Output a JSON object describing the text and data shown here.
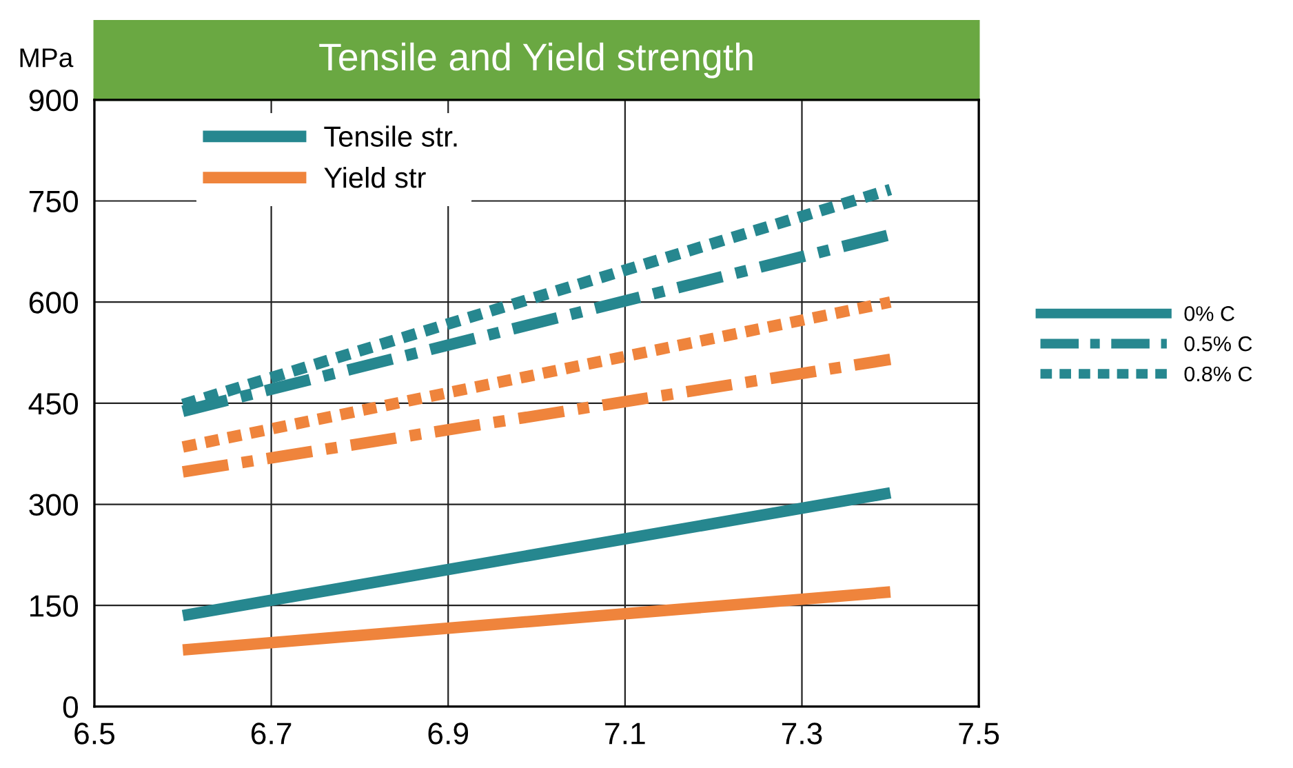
{
  "chart_data": {
    "type": "line",
    "title": "Tensile and Yield strength",
    "ylabel": "MPa",
    "x": [
      6.6,
      7.4
    ],
    "series": [
      {
        "name": "Tensile str.",
        "color": "#26878f",
        "values": [
          135,
          317
        ],
        "line_style": "solid"
      },
      {
        "name": "Yield str",
        "color": "#ef843c",
        "values": [
          84,
          170
        ],
        "line_style": "solid"
      },
      {
        "color": "#26878f",
        "values": [
          438,
          700
        ],
        "line_style": "dashdot"
      },
      {
        "color": "#ef843c",
        "values": [
          348,
          515
        ],
        "line_style": "dashdot"
      },
      {
        "color": "#26878f",
        "values": [
          448,
          767
        ],
        "line_style": "dashed"
      },
      {
        "color": "#ef843c",
        "values": [
          385,
          600
        ],
        "line_style": "dashed"
      }
    ],
    "annotations": [
      "0% C",
      "0.5% C",
      "0.8% C"
    ],
    "xlim": [
      6.5,
      7.5
    ],
    "xticks": [
      6.5,
      6.7,
      6.9,
      7.1,
      7.3,
      7.5
    ],
    "ylim": [
      0,
      900
    ],
    "yticks": [
      0,
      150,
      300,
      450,
      600,
      750,
      900
    ],
    "grid": true,
    "legend": "top left",
    "marker": "none"
  }
}
